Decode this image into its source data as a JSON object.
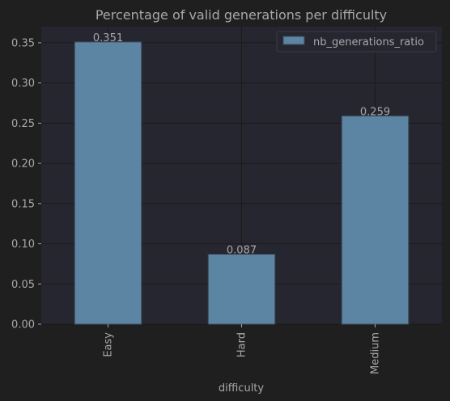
{
  "colors": {
    "page_background": "#1f1f1f",
    "plot_background": "#262630",
    "grid": "#1a1a1a",
    "bar_fill": "#5c84a3",
    "bar_edge": "#3b4a56",
    "text": "#a8a8a8"
  },
  "chart_data": {
    "type": "bar",
    "title": "Percentage of valid generations per difficulty",
    "xlabel": "difficulty",
    "ylabel": "",
    "categories": [
      "Easy",
      "Hard",
      "Medium"
    ],
    "series": [
      {
        "name": "nb_generations_ratio",
        "values": [
          0.351,
          0.087,
          0.259
        ]
      }
    ],
    "data_labels": [
      "0.351",
      "0.087",
      "0.259"
    ],
    "ylim": [
      0,
      0.37
    ],
    "yticks": [
      0.0,
      0.05,
      0.1,
      0.15,
      0.2,
      0.25,
      0.3,
      0.35
    ],
    "ytick_labels": [
      "0.00",
      "0.05",
      "0.10",
      "0.15",
      "0.20",
      "0.25",
      "0.30",
      "0.35"
    ],
    "grid": true,
    "legend_position": "top-right",
    "xtick_rotation": "vertical"
  }
}
